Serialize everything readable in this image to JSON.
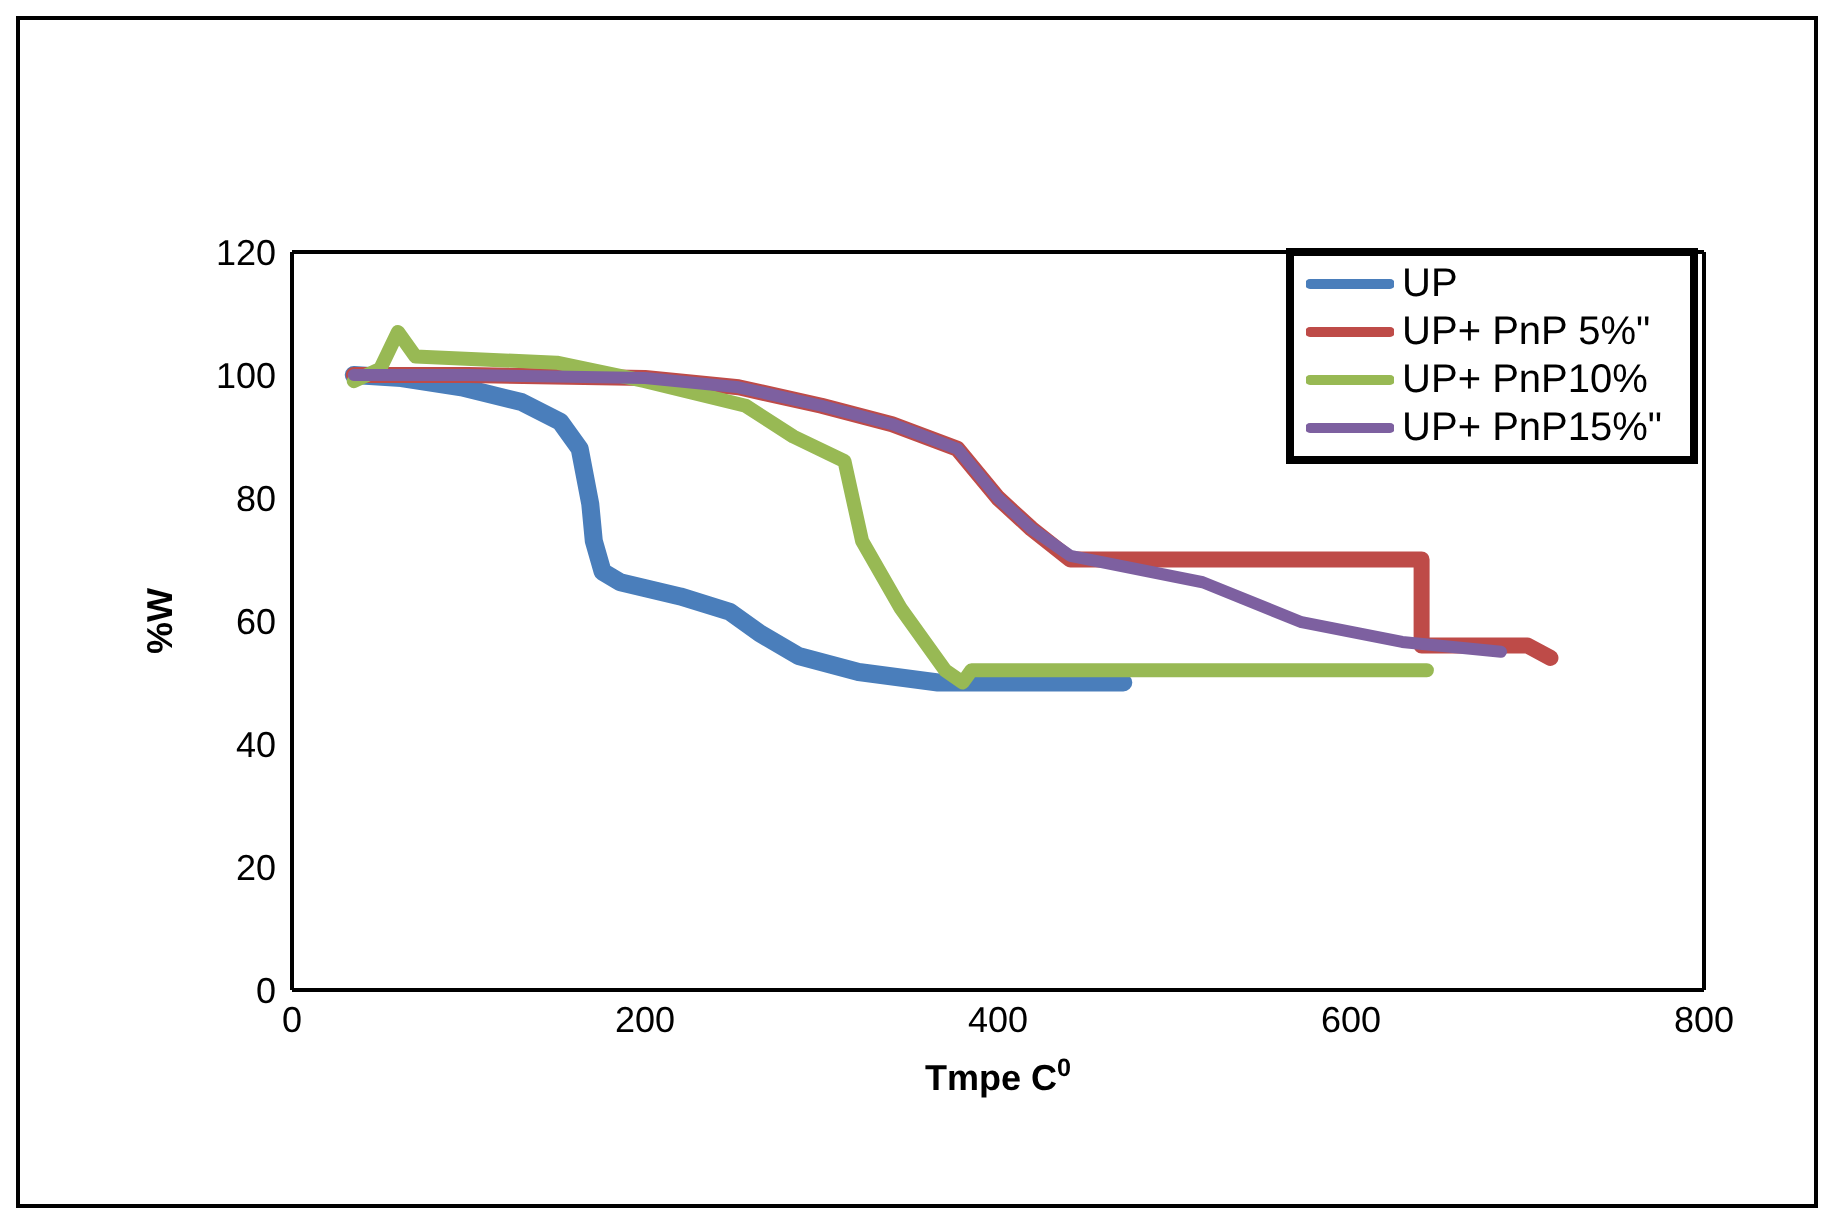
{
  "chart_data": {
    "type": "line",
    "xlabel": "Tmpe C$^{0}$",
    "ylabel": "%W",
    "xlim": [
      0,
      800
    ],
    "xticks": [
      0,
      200,
      400,
      600,
      800
    ],
    "ylim": [
      0,
      120
    ],
    "yticks": [
      0,
      20,
      40,
      60,
      80,
      100,
      120
    ],
    "legend": "top right",
    "marker": "none",
    "line_style": "solid",
    "series": [
      {
        "name": "UP",
        "color": "#4a7ebb",
        "x": [
          35,
          62,
          96,
          130,
          152,
          163,
          169,
          171,
          176,
          186,
          220,
          248,
          265,
          287,
          321,
          366,
          380,
          471
        ],
        "values": [
          100,
          99.5,
          98,
          95.6,
          92.4,
          88,
          79,
          73,
          68,
          66.3,
          64,
          61.5,
          58,
          54.3,
          51.7,
          50,
          50,
          50
        ]
      },
      {
        "name": "UP+ PnP 5%\"",
        "color": "#be4b48",
        "x": [
          35,
          100,
          200,
          253,
          300,
          340,
          377,
          400,
          419,
          441,
          500,
          640,
          640,
          700,
          713
        ],
        "values": [
          100,
          100,
          99.5,
          98,
          95,
          92,
          88,
          80,
          75,
          70,
          70,
          70,
          56,
          56,
          54
        ]
      },
      {
        "name": "UP+ PnP10%",
        "color": "#98b954",
        "x": [
          35,
          50,
          60,
          70,
          150,
          200,
          257,
          284,
          313,
          323,
          345,
          370,
          380,
          385,
          643
        ],
        "values": [
          99,
          101,
          107,
          103,
          102,
          99,
          95,
          90,
          86,
          73,
          62,
          52,
          50,
          52,
          52
        ]
      },
      {
        "name": "UP+ PnP15%\"",
        "color": "#7d60a0",
        "x": [
          35,
          100,
          200,
          253,
          300,
          340,
          377,
          400,
          419,
          441,
          516,
          572,
          629,
          685
        ],
        "values": [
          100,
          100,
          99.5,
          98,
          95,
          92,
          88,
          80,
          75,
          70.6,
          66.3,
          59.8,
          56.6,
          55
        ]
      }
    ]
  }
}
